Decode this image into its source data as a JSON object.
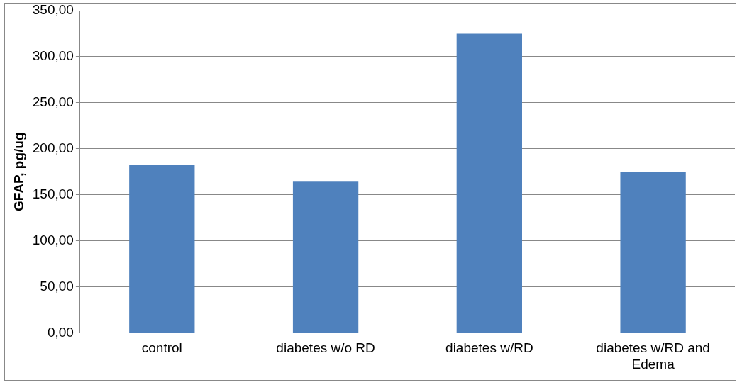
{
  "chart_data": {
    "type": "bar",
    "ylabel": "GFAP, pg/ug",
    "categories": [
      "control",
      "diabetes w/o RD",
      "diabetes w/RD",
      "diabetes w/RD and Edema"
    ],
    "values": [
      182,
      165,
      325,
      175
    ],
    "color": "#4f81bd",
    "ylim": [
      0,
      350
    ],
    "yticks": [
      {
        "value": 0,
        "label": "0,00"
      },
      {
        "value": 50,
        "label": "50,00"
      },
      {
        "value": 100,
        "label": "100,00"
      },
      {
        "value": 150,
        "label": "150,00"
      },
      {
        "value": 200,
        "label": "200,00"
      },
      {
        "value": 250,
        "label": "250,00"
      },
      {
        "value": 300,
        "label": "300,00"
      },
      {
        "value": 350,
        "label": "350,00"
      }
    ],
    "grid": "y",
    "legend": false
  }
}
